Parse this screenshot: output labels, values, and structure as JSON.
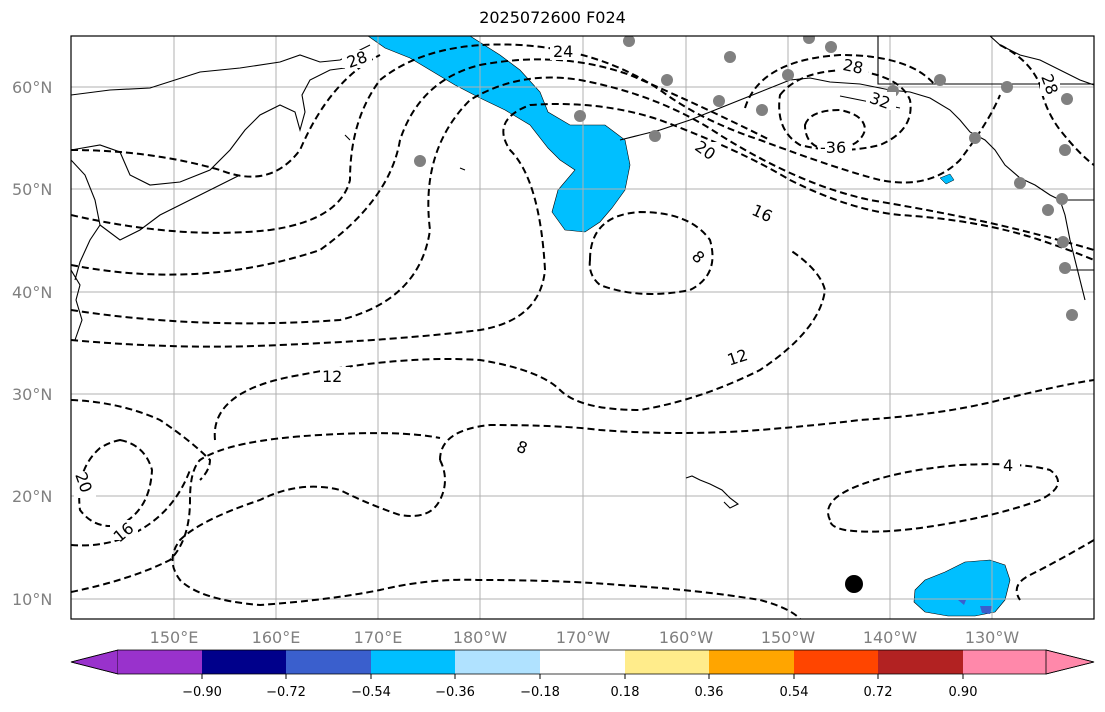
{
  "title": "2025072600 F024",
  "lat_labels": [
    "60°N",
    "50°N",
    "40°N",
    "30°N",
    "20°N",
    "10°N"
  ],
  "lon_labels": [
    "150°E",
    "160°E",
    "170°E",
    "180°W",
    "170°W",
    "160°W",
    "150°W",
    "140°W",
    "130°W"
  ],
  "contour_labels": [
    "28",
    "24",
    "28",
    "32",
    "28",
    "20",
    "16",
    "-36",
    "8",
    "12",
    "12",
    "8",
    "4",
    "20",
    "16"
  ],
  "colorbar": {
    "colors": [
      "#9932cc",
      "#00008b",
      "#3a5fcd",
      "#00bfff",
      "#b0e2ff",
      "#ffffff",
      "#ffec8b",
      "#ffa500",
      "#ff4500",
      "#b22222",
      "#ff88aa"
    ],
    "ticks": [
      "−0.90",
      "−0.72",
      "−0.54",
      "−0.36",
      "−0.18",
      "0.18",
      "0.36",
      "0.54",
      "0.72",
      "0.90"
    ]
  },
  "palette": {
    "grid": "#b0b0b0",
    "label": "#808080",
    "station": "#808080",
    "shade": "#00bfff"
  }
}
